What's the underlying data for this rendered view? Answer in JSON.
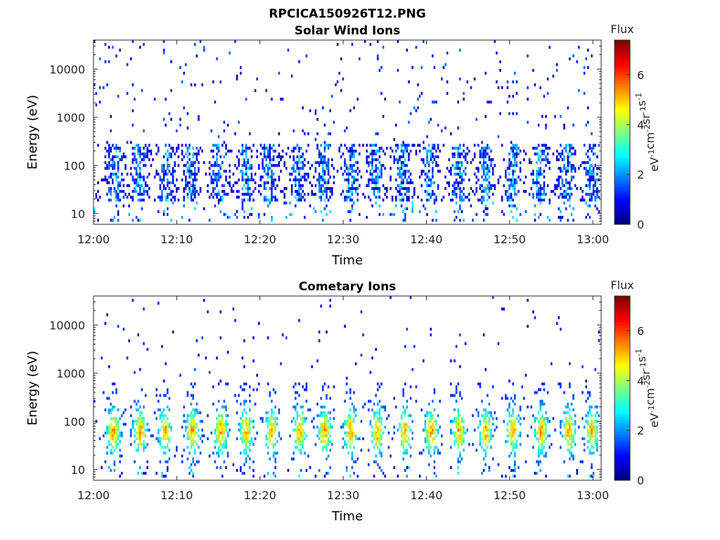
{
  "figure_title": "RPCICA150926T12.PNG",
  "chart_data": [
    {
      "type": "heatmap",
      "title": "Solar Wind Ions",
      "xlabel": "Time",
      "ylabel": "Energy (eV)",
      "x_ticks": [
        "12:00",
        "12:10",
        "12:20",
        "12:30",
        "12:40",
        "12:50",
        "13:00"
      ],
      "x_range": [
        "12:00",
        "13:01"
      ],
      "y_scale": "log",
      "y_ticks": [
        "10",
        "100",
        "1000",
        "10000"
      ],
      "y_range": [
        6,
        40000
      ],
      "colorbar": {
        "label": "Flux",
        "unit": "eV^-1 cm^-2 sr^-1 s^-1",
        "range": [
          0,
          7.4
        ],
        "ticks": [
          "0",
          "2",
          "4",
          "6"
        ],
        "colormap": "jet"
      },
      "description_of_marks": "sparse low-flux (values ~0.5-2) pixels scattered above 100 eV; denser bands of flux ~1-3 between ~20 and 200 eV in bursts roughly every 3 minutes",
      "bursts_minutes": [
        2.5,
        5.5,
        8.7,
        11.5,
        15.0,
        18.2,
        21.0,
        24.5,
        27.5,
        30.8,
        33.8,
        37.0,
        40.3,
        43.8,
        47.0,
        50.3,
        53.5,
        56.8,
        59.8
      ],
      "peak_flux": 3.0
    },
    {
      "type": "heatmap",
      "title": "Cometary Ions",
      "xlabel": "Time",
      "ylabel": "Energy (eV)",
      "x_ticks": [
        "12:00",
        "12:10",
        "12:20",
        "12:30",
        "12:40",
        "12:50",
        "13:00"
      ],
      "x_range": [
        "12:00",
        "13:01"
      ],
      "y_scale": "log",
      "y_ticks": [
        "10",
        "100",
        "1000",
        "10000"
      ],
      "y_range": [
        6,
        40000
      ],
      "colorbar": {
        "label": "Flux",
        "unit": "eV^-1 cm^-2 sr^-1 s^-1",
        "range": [
          0,
          7.4
        ],
        "ticks": [
          "0",
          "2",
          "4",
          "6"
        ],
        "colormap": "jet"
      },
      "description_of_marks": "periodic bursts of high flux (peaks ~5-6) centered near 40-100 eV, extending ~10-500 eV; sparse low-flux pixels up to ~10000 eV",
      "bursts_minutes": [
        2.3,
        5.5,
        8.5,
        11.8,
        15.2,
        18.2,
        21.3,
        24.7,
        27.7,
        30.8,
        34.0,
        37.3,
        40.5,
        43.8,
        47.0,
        50.3,
        53.7,
        57.0,
        59.8
      ],
      "peak_flux": 5.8
    }
  ]
}
